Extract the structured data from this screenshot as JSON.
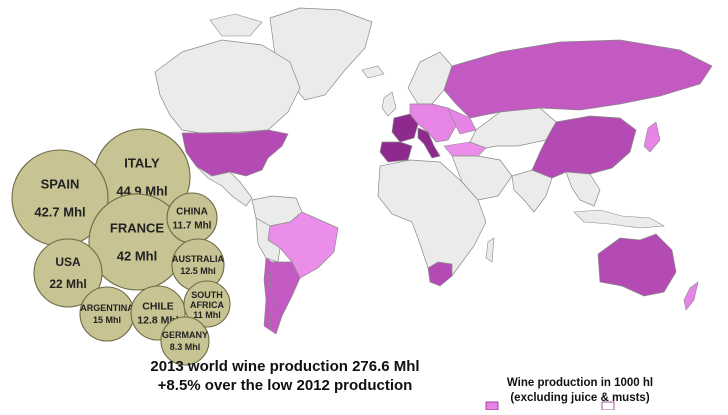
{
  "caption": {
    "line1": "2013  world wine production 276.6 Mhl",
    "line2": "+8.5% over the low 2012 production"
  },
  "legend": {
    "title_line1": "Wine production in 1000 hl",
    "title_line2": "(excluding juice & musts)"
  },
  "bubbles": [
    {
      "country": "ITALY",
      "value": "44.9 Mhl"
    },
    {
      "country": "SPAIN",
      "value": "42.7 Mhl"
    },
    {
      "country": "FRANCE",
      "value": "42 Mhl"
    },
    {
      "country": "USA",
      "value": "22 Mhl"
    },
    {
      "country": "CHINA",
      "value": "11.7 Mhl"
    },
    {
      "country": "AUSTRALIA",
      "value": "12.5 Mhl"
    },
    {
      "country": "ARGENTINA",
      "value": "15 Mhl"
    },
    {
      "country": "CHILE",
      "value": "12.8 Mhl"
    },
    {
      "country": "SOUTH AFRICA",
      "value": "11 Mhl"
    },
    {
      "country": "GERMANY",
      "value": "8.3 Mhl"
    }
  ],
  "colors": {
    "bubble_fill": "#c8c393",
    "bubble_stroke": "#6e6a45",
    "land_default": "#ebebeb",
    "border": "#8a8a8a",
    "tier_light": "#e685e6",
    "tier_mid": "#c25ac2",
    "tier_dark": "#8e2a8e"
  }
}
